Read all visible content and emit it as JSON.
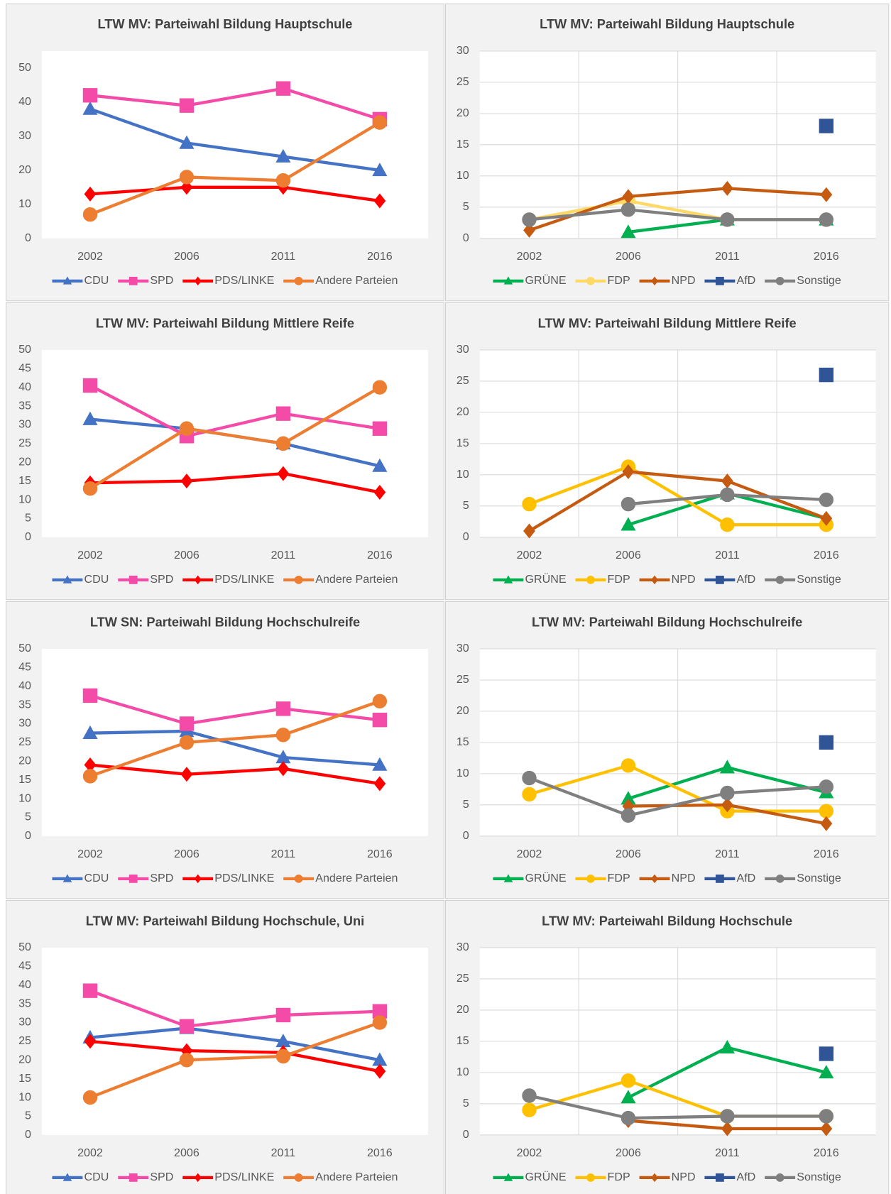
{
  "chart_data": [
    {
      "type": "line",
      "title": "LTW MV: Parteiwahl Bildung Hauptschule",
      "categories": [
        "2002",
        "2006",
        "2011",
        "2016"
      ],
      "ylim": [
        0,
        55
      ],
      "yticks": [
        0,
        10,
        20,
        30,
        40,
        50
      ],
      "grid": false,
      "series": [
        {
          "name": "CDU",
          "color": "#4472c4",
          "marker": "triangle",
          "values": [
            38,
            28,
            24,
            20
          ]
        },
        {
          "name": "SPD",
          "color": "#f54ba8",
          "marker": "square",
          "values": [
            42,
            39,
            44,
            35
          ]
        },
        {
          "name": "PDS/LINKE",
          "color": "#ff0000",
          "marker": "diamond",
          "values": [
            13,
            15,
            15,
            11
          ]
        },
        {
          "name": "Andere Parteien",
          "color": "#ed7d31",
          "marker": "circle",
          "values": [
            7,
            18,
            17,
            34
          ]
        }
      ]
    },
    {
      "type": "line",
      "title": "LTW MV: Parteiwahl Bildung Hauptschule",
      "categories": [
        "2002",
        "2006",
        "2011",
        "2016"
      ],
      "ylim": [
        0,
        30
      ],
      "yticks": [
        0,
        5,
        10,
        15,
        20,
        25,
        30
      ],
      "grid": true,
      "series": [
        {
          "name": "GRÜNE",
          "color": "#00b050",
          "marker": "triangle",
          "values": [
            null,
            1,
            3,
            3
          ]
        },
        {
          "name": "FDP",
          "color": "#ffd966",
          "marker": "circle",
          "values": [
            3,
            6,
            3,
            3
          ]
        },
        {
          "name": "NPD",
          "color": "#c55a11",
          "marker": "diamond",
          "values": [
            1.3,
            6.7,
            8,
            7
          ]
        },
        {
          "name": "AfD",
          "color": "#2f5597",
          "marker": "square",
          "values": [
            null,
            null,
            null,
            18
          ]
        },
        {
          "name": "Sonstige",
          "color": "#7f7f7f",
          "marker": "circle",
          "values": [
            3,
            4.6,
            3,
            3
          ]
        }
      ]
    },
    {
      "type": "line",
      "title": "LTW MV: Parteiwahl Bildung Mittlere Reife",
      "categories": [
        "2002",
        "2006",
        "2011",
        "2016"
      ],
      "ylim": [
        0,
        50
      ],
      "yticks": [
        0,
        5,
        10,
        15,
        20,
        25,
        30,
        35,
        40,
        45,
        50
      ],
      "grid": false,
      "series": [
        {
          "name": "CDU",
          "color": "#4472c4",
          "marker": "triangle",
          "values": [
            31.5,
            29,
            25,
            19
          ]
        },
        {
          "name": "SPD",
          "color": "#f54ba8",
          "marker": "square",
          "values": [
            40.5,
            27,
            33,
            29
          ]
        },
        {
          "name": "PDS/LINKE",
          "color": "#ff0000",
          "marker": "diamond",
          "values": [
            14.5,
            15,
            17,
            12
          ]
        },
        {
          "name": "Andere Parteien",
          "color": "#ed7d31",
          "marker": "circle",
          "values": [
            13,
            29,
            25,
            40
          ]
        }
      ]
    },
    {
      "type": "line",
      "title": "LTW MV: Parteiwahl Bildung Mittlere Reife",
      "categories": [
        "2002",
        "2006",
        "2011",
        "2016"
      ],
      "ylim": [
        0,
        30
      ],
      "yticks": [
        0,
        5,
        10,
        15,
        20,
        25,
        30
      ],
      "grid": true,
      "series": [
        {
          "name": "GRÜNE",
          "color": "#00b050",
          "marker": "triangle",
          "values": [
            null,
            2,
            7,
            3
          ]
        },
        {
          "name": "FDP",
          "color": "#ffc000",
          "marker": "circle",
          "values": [
            5.3,
            11.3,
            2,
            2
          ]
        },
        {
          "name": "NPD",
          "color": "#c55a11",
          "marker": "diamond",
          "values": [
            1,
            10.5,
            9,
            3
          ]
        },
        {
          "name": "AfD",
          "color": "#2f5597",
          "marker": "square",
          "values": [
            null,
            null,
            null,
            26
          ]
        },
        {
          "name": "Sonstige",
          "color": "#7f7f7f",
          "marker": "circle",
          "values": [
            null,
            5.3,
            6.8,
            6
          ]
        }
      ]
    },
    {
      "type": "line",
      "title": "LTW SN: Parteiwahl Bildung Hochschulreife",
      "categories": [
        "2002",
        "2006",
        "2011",
        "2016"
      ],
      "ylim": [
        0,
        50
      ],
      "yticks": [
        0,
        5,
        10,
        15,
        20,
        25,
        30,
        35,
        40,
        45,
        50
      ],
      "grid": false,
      "series": [
        {
          "name": "CDU",
          "color": "#4472c4",
          "marker": "triangle",
          "values": [
            27.5,
            28,
            21,
            19
          ]
        },
        {
          "name": "SPD",
          "color": "#f54ba8",
          "marker": "square",
          "values": [
            37.5,
            30,
            34,
            31
          ]
        },
        {
          "name": "PDS/LINKE",
          "color": "#ff0000",
          "marker": "diamond",
          "values": [
            19,
            16.5,
            18,
            14
          ]
        },
        {
          "name": "Andere Parteien",
          "color": "#ed7d31",
          "marker": "circle",
          "values": [
            16,
            25,
            27,
            36
          ]
        }
      ]
    },
    {
      "type": "line",
      "title": "LTW MV: Parteiwahl Bildung Hochschulreife",
      "categories": [
        "2002",
        "2006",
        "2011",
        "2016"
      ],
      "ylim": [
        0,
        30
      ],
      "yticks": [
        0,
        5,
        10,
        15,
        20,
        25,
        30
      ],
      "grid": true,
      "series": [
        {
          "name": "GRÜNE",
          "color": "#00b050",
          "marker": "triangle",
          "values": [
            null,
            6,
            11,
            7
          ]
        },
        {
          "name": "FDP",
          "color": "#ffc000",
          "marker": "circle",
          "values": [
            6.7,
            11.3,
            4,
            4
          ]
        },
        {
          "name": "NPD",
          "color": "#c55a11",
          "marker": "diamond",
          "values": [
            null,
            4.8,
            5,
            2
          ]
        },
        {
          "name": "AfD",
          "color": "#2f5597",
          "marker": "square",
          "values": [
            null,
            null,
            null,
            15
          ]
        },
        {
          "name": "Sonstige",
          "color": "#7f7f7f",
          "marker": "circle",
          "values": [
            9.3,
            3.3,
            6.9,
            7.9
          ]
        }
      ]
    },
    {
      "type": "line",
      "title": "LTW MV: Parteiwahl Bildung Hochschule, Uni",
      "categories": [
        "2002",
        "2006",
        "2011",
        "2016"
      ],
      "ylim": [
        0,
        50
      ],
      "yticks": [
        0,
        5,
        10,
        15,
        20,
        25,
        30,
        35,
        40,
        45,
        50
      ],
      "grid": false,
      "series": [
        {
          "name": "CDU",
          "color": "#4472c4",
          "marker": "triangle",
          "values": [
            26,
            28.5,
            25,
            20
          ]
        },
        {
          "name": "SPD",
          "color": "#f54ba8",
          "marker": "square",
          "values": [
            38.5,
            29,
            32,
            33
          ]
        },
        {
          "name": "PDS/LINKE",
          "color": "#ff0000",
          "marker": "diamond",
          "values": [
            25,
            22.5,
            22,
            17
          ]
        },
        {
          "name": "Andere Parteien",
          "color": "#ed7d31",
          "marker": "circle",
          "values": [
            10,
            20,
            21,
            30
          ]
        }
      ]
    },
    {
      "type": "line",
      "title": "LTW MV: Parteiwahl Bildung Hochschule",
      "categories": [
        "2002",
        "2006",
        "2011",
        "2016"
      ],
      "ylim": [
        0,
        30
      ],
      "yticks": [
        0,
        5,
        10,
        15,
        20,
        25,
        30
      ],
      "grid": true,
      "series": [
        {
          "name": "GRÜNE",
          "color": "#00b050",
          "marker": "triangle",
          "values": [
            null,
            6,
            14,
            10
          ]
        },
        {
          "name": "FDP",
          "color": "#ffc000",
          "marker": "circle",
          "values": [
            4,
            8.7,
            3,
            3
          ]
        },
        {
          "name": "NPD",
          "color": "#c55a11",
          "marker": "diamond",
          "values": [
            null,
            2.3,
            1,
            1
          ]
        },
        {
          "name": "AfD",
          "color": "#2f5597",
          "marker": "square",
          "values": [
            null,
            null,
            null,
            13
          ]
        },
        {
          "name": "Sonstige",
          "color": "#7f7f7f",
          "marker": "circle",
          "values": [
            6.3,
            2.7,
            3,
            3
          ]
        }
      ]
    }
  ]
}
